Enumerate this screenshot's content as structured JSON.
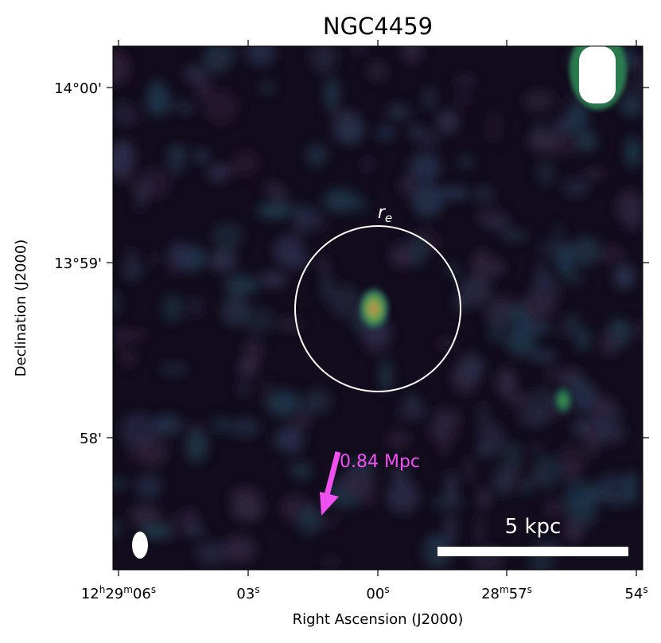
{
  "title": "NGC4459",
  "x_axis": {
    "label": "Right Ascension (J2000)",
    "ticks": [
      [
        "12",
        "h",
        "29",
        "m",
        "06",
        "s"
      ],
      [
        "03",
        "s"
      ],
      [
        "00",
        "s"
      ],
      [
        "28",
        "m",
        "57",
        "s"
      ],
      [
        "54",
        "s"
      ]
    ]
  },
  "y_axis": {
    "label": "Declination (J2000)",
    "ticks": [
      "14°00'",
      "13°59'",
      "58'"
    ]
  },
  "annotations": {
    "circle_label": "r",
    "circle_label_sub": "e",
    "distance": "0.84 Mpc",
    "scale_bar": "5 kpc"
  }
}
